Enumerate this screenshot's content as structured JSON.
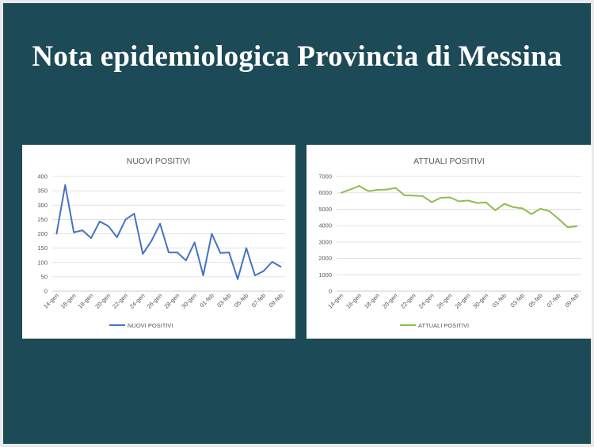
{
  "slide": {
    "title": "Nota epidemiologica Provincia di Messina",
    "background_color": "#1c4a56"
  },
  "chart_data": [
    {
      "type": "line",
      "title": "NUOVI POSITIVI",
      "x": [
        "14-gen",
        "15-gen",
        "16-gen",
        "17-gen",
        "18-gen",
        "19-gen",
        "20-gen",
        "21-gen",
        "22-gen",
        "23-gen",
        "24-gen",
        "25-gen",
        "26-gen",
        "27-gen",
        "28-gen",
        "29-gen",
        "30-gen",
        "31-gen",
        "01-feb",
        "02-feb",
        "03-feb",
        "04-feb",
        "05-feb",
        "06-feb",
        "07-feb",
        "08-feb",
        "09-feb"
      ],
      "x_tick_labels": [
        "14-gen",
        "16-gen",
        "18-gen",
        "20-gen",
        "22-gen",
        "24-gen",
        "26-gen",
        "28-gen",
        "30-gen",
        "01-feb",
        "03-feb",
        "05-feb",
        "07-feb",
        "09-feb"
      ],
      "series": [
        {
          "name": "NUOVI POSITIVI",
          "color": "#4472c4",
          "values": [
            200,
            370,
            205,
            212,
            185,
            243,
            227,
            188,
            250,
            270,
            130,
            175,
            235,
            135,
            135,
            107,
            170,
            55,
            200,
            133,
            135,
            42,
            150,
            55,
            70,
            102,
            85
          ]
        }
      ],
      "ylim": [
        0,
        400
      ],
      "yticks": [
        0,
        50,
        100,
        150,
        200,
        250,
        300,
        350,
        400
      ],
      "grid": true,
      "legend": "bottom"
    },
    {
      "type": "line",
      "title": "ATTUALI POSITIVI",
      "x": [
        "14-gen",
        "15-gen",
        "16-gen",
        "17-gen",
        "18-gen",
        "19-gen",
        "20-gen",
        "21-gen",
        "22-gen",
        "23-gen",
        "24-gen",
        "25-gen",
        "26-gen",
        "27-gen",
        "28-gen",
        "29-gen",
        "30-gen",
        "31-gen",
        "01-feb",
        "02-feb",
        "03-feb",
        "04-feb",
        "05-feb",
        "06-feb",
        "07-feb",
        "08-feb",
        "09-feb"
      ],
      "x_tick_labels": [
        "14-gen",
        "16-gen",
        "18-gen",
        "20-gen",
        "22-gen",
        "24-gen",
        "26-gen",
        "28-gen",
        "30-gen",
        "01-feb",
        "03-feb",
        "05-feb",
        "07-feb",
        "09-feb"
      ],
      "series": [
        {
          "name": "ATTUALI POSITIVI",
          "color": "#8dbd4f",
          "values": [
            6000,
            6200,
            6420,
            6100,
            6180,
            6200,
            6300,
            5850,
            5830,
            5800,
            5430,
            5700,
            5720,
            5480,
            5530,
            5380,
            5410,
            4930,
            5330,
            5120,
            5050,
            4700,
            5030,
            4870,
            4400,
            3900,
            3960
          ]
        }
      ],
      "ylim": [
        0,
        7000
      ],
      "yticks": [
        0,
        1000,
        2000,
        3000,
        4000,
        5000,
        6000,
        7000
      ],
      "grid": true,
      "legend": "bottom"
    }
  ]
}
